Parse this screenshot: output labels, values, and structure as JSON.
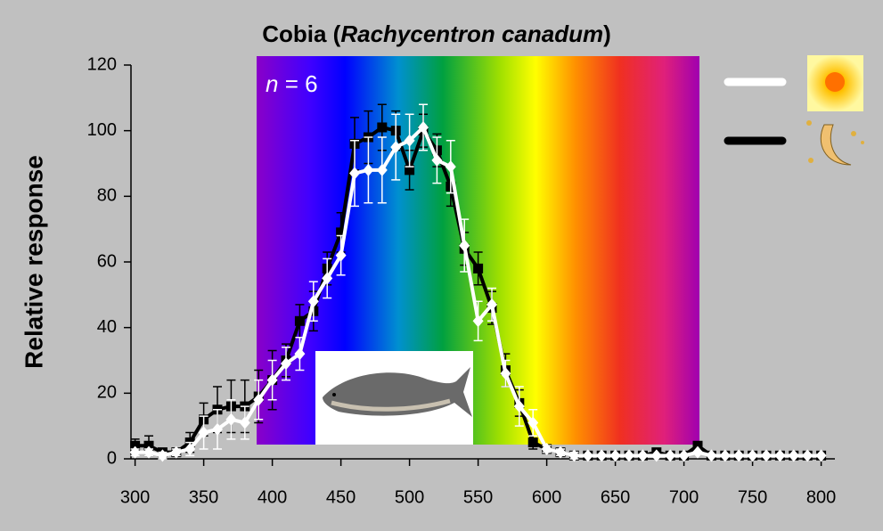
{
  "chart_data": {
    "type": "line",
    "title_parts": [
      "Cobia (",
      "Rachycentron canadum",
      ")"
    ],
    "annotation_parts": [
      "n",
      "= 6"
    ],
    "y_label": "Relative response",
    "x": [
      300,
      310,
      320,
      330,
      340,
      350,
      360,
      370,
      380,
      390,
      400,
      410,
      420,
      430,
      440,
      450,
      460,
      470,
      480,
      490,
      500,
      510,
      520,
      530,
      540,
      550,
      560,
      570,
      580,
      590,
      600,
      610,
      620,
      630,
      640,
      650,
      660,
      670,
      680,
      690,
      700,
      710,
      720,
      730,
      740,
      750,
      760,
      770,
      780,
      790,
      800
    ],
    "series": [
      {
        "color": "#000000",
        "marker": "square",
        "values": [
          4,
          4,
          2,
          2,
          5,
          12,
          15,
          16,
          16,
          19,
          24,
          30,
          42,
          45,
          58,
          69,
          96,
          98,
          101,
          100,
          88,
          100,
          94,
          83,
          64,
          58,
          46,
          27,
          17,
          5,
          3,
          2,
          1,
          1,
          1,
          1,
          1,
          1,
          2,
          1,
          1,
          4,
          1,
          1,
          1,
          1,
          1,
          1,
          1,
          1,
          1
        ],
        "errors": [
          2,
          3,
          1,
          1,
          3,
          5,
          7,
          8,
          8,
          8,
          9,
          5,
          5,
          6,
          5,
          6,
          8,
          8,
          7,
          6,
          6,
          5,
          5,
          6,
          5,
          5,
          5,
          5,
          4,
          2,
          1,
          1,
          0,
          0,
          0,
          0,
          0,
          0,
          0,
          0,
          0,
          1,
          0,
          0,
          0,
          0,
          0,
          0,
          0,
          0,
          0
        ]
      },
      {
        "color": "#ffffff",
        "marker": "diamond",
        "values": [
          2,
          2,
          1,
          2,
          3,
          8,
          9,
          12,
          11,
          18,
          24,
          29,
          32,
          48,
          55,
          62,
          87,
          88,
          88,
          95,
          97,
          101,
          91,
          89,
          65,
          42,
          47,
          26,
          16,
          11,
          3,
          2,
          1,
          1,
          1,
          1,
          1,
          1,
          1,
          1,
          1,
          2,
          1,
          1,
          1,
          1,
          1,
          1,
          1,
          1,
          1
        ],
        "errors": [
          1,
          1,
          1,
          1,
          2,
          5,
          6,
          6,
          5,
          6,
          6,
          5,
          5,
          6,
          6,
          6,
          10,
          10,
          10,
          10,
          8,
          7,
          7,
          8,
          8,
          6,
          5,
          4,
          6,
          4,
          1,
          1,
          1,
          0,
          0,
          0,
          0,
          0,
          0,
          0,
          0,
          0,
          0,
          0,
          0,
          0,
          0,
          0,
          0,
          0,
          0
        ]
      }
    ],
    "xlim": [
      297,
      810
    ],
    "xticks": [
      300,
      350,
      400,
      450,
      500,
      550,
      600,
      650,
      700,
      750,
      800
    ],
    "ylim": [
      0,
      120
    ],
    "yticks": [
      0,
      20,
      40,
      60,
      80,
      100,
      120
    ]
  }
}
